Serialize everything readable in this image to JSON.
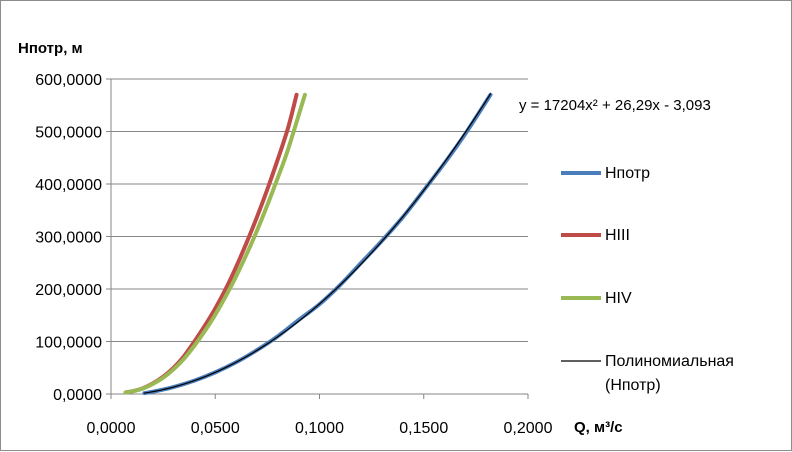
{
  "chart_data": {
    "type": "line",
    "ylabel": "Нпотр, м",
    "xlabel": "Q, м³/с",
    "xlim": [
      0,
      0.2
    ],
    "ylim": [
      0,
      600
    ],
    "x_ticks": [
      "0,0000",
      "0,0500",
      "0,1000",
      "0,1500",
      "0,2000"
    ],
    "y_ticks": [
      "0,0000",
      "100,0000",
      "200,0000",
      "300,0000",
      "400,0000",
      "500,0000",
      "600,0000"
    ],
    "grid": "horizontal",
    "legend_position": "right",
    "trendline_equation": "y = 17204x² + 26,29x - 3,093",
    "series": [
      {
        "name": "Нпотр",
        "color": "#4a7ebb",
        "points": [
          [
            0.016,
            1.7
          ],
          [
            0.02,
            4.3
          ],
          [
            0.03,
            13.3
          ],
          [
            0.04,
            25.5
          ],
          [
            0.05,
            41.2
          ],
          [
            0.06,
            60.4
          ],
          [
            0.07,
            83.6
          ],
          [
            0.08,
            110.1
          ],
          [
            0.09,
            141.0
          ],
          [
            0.1,
            171.0
          ],
          [
            0.11,
            208.0
          ],
          [
            0.12,
            250.0
          ],
          [
            0.13,
            292.0
          ],
          [
            0.14,
            337.0
          ],
          [
            0.15,
            388.0
          ],
          [
            0.16,
            440.0
          ],
          [
            0.17,
            496.0
          ],
          [
            0.182,
            570.0
          ]
        ]
      },
      {
        "name": "НIII",
        "color": "#be4b48",
        "points": [
          [
            0.007,
            3.0
          ],
          [
            0.01,
            5.0
          ],
          [
            0.015,
            10.5
          ],
          [
            0.02,
            20.0
          ],
          [
            0.025,
            33.0
          ],
          [
            0.03,
            50.0
          ],
          [
            0.035,
            72.0
          ],
          [
            0.04,
            100.0
          ],
          [
            0.045,
            130.0
          ],
          [
            0.05,
            163.0
          ],
          [
            0.055,
            200.0
          ],
          [
            0.06,
            242.0
          ],
          [
            0.065,
            288.0
          ],
          [
            0.07,
            337.0
          ],
          [
            0.075,
            390.0
          ],
          [
            0.08,
            447.0
          ],
          [
            0.085,
            508.0
          ],
          [
            0.089,
            570.0
          ]
        ]
      },
      {
        "name": "НIV",
        "color": "#98b954",
        "points": [
          [
            0.007,
            3.0
          ],
          [
            0.01,
            5.0
          ],
          [
            0.015,
            10.0
          ],
          [
            0.02,
            19.0
          ],
          [
            0.025,
            31.0
          ],
          [
            0.03,
            47.0
          ],
          [
            0.035,
            67.0
          ],
          [
            0.04,
            92.0
          ],
          [
            0.045,
            120.0
          ],
          [
            0.05,
            151.0
          ],
          [
            0.055,
            186.0
          ],
          [
            0.06,
            224.0
          ],
          [
            0.065,
            266.0
          ],
          [
            0.07,
            311.0
          ],
          [
            0.075,
            360.0
          ],
          [
            0.08,
            412.0
          ],
          [
            0.085,
            467.0
          ],
          [
            0.093,
            570.0
          ]
        ]
      },
      {
        "name": "Полиномиальная (Нпотр)",
        "color": "#000000",
        "trendline": {
          "a": 17204,
          "b": 26.29,
          "c": -3.093,
          "x_from": 0.016,
          "x_to": 0.182
        }
      }
    ]
  },
  "legend": {
    "items": [
      {
        "label": "Нпотр",
        "color": "#4a7ebb"
      },
      {
        "label": "НIII",
        "color": "#be4b48"
      },
      {
        "label": "НIV",
        "color": "#98b954"
      },
      {
        "label_line1": "Полиномиальная",
        "label_line2": "(Нпотр)",
        "color": "#000000"
      }
    ]
  }
}
